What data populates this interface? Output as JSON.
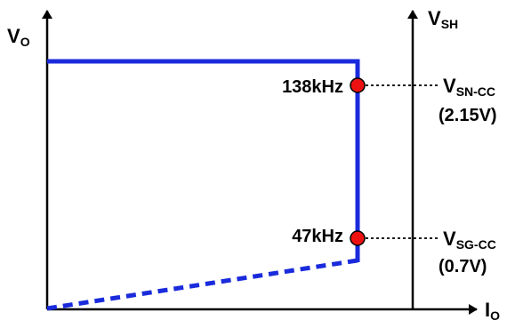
{
  "labels": {
    "vo": {
      "main": "V",
      "sub": "O"
    },
    "vsh": {
      "main": "V",
      "sub": "SH"
    },
    "io": {
      "main": "I",
      "sub": "O"
    },
    "freq_high": "138kHz",
    "freq_low": "47kHz",
    "vsn": {
      "main": "V",
      "sub": "SN-CC",
      "value": "(2.15V)"
    },
    "vsg": {
      "main": "V",
      "sub": "SG-CC",
      "value": "(0.7V)"
    }
  },
  "colors": {
    "curve": "#1a2bdc",
    "marker_fill": "#ee1111",
    "axis": "#000000"
  }
}
